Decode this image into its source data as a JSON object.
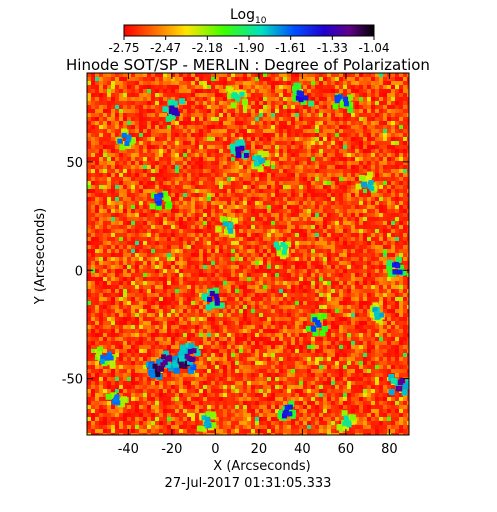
{
  "chart_data": {
    "type": "heatmap",
    "title": "Hinode SOT/SP - MERLIN : Degree of Polarization",
    "colorbar": {
      "label": "Log",
      "label_subscript": "10",
      "tick_labels": [
        "-2.75",
        "-2.47",
        "-2.18",
        "-1.90",
        "-1.61",
        "-1.33",
        "-1.04"
      ],
      "range": [
        -2.75,
        -1.04
      ],
      "colormap": "rainbow (red → yellow → green → cyan → blue → purple → black)"
    },
    "xlabel": "X (Arcseconds)",
    "ylabel": "Y (Arcseconds)",
    "xlim": [
      -59,
      89
    ],
    "ylim": [
      -76,
      91
    ],
    "xticks": [
      -40,
      -20,
      0,
      20,
      40,
      60,
      80
    ],
    "yticks": [
      -50,
      0,
      50
    ],
    "timestamp": "27-Jul-2017 01:31:05.333",
    "background_level": "red-orange noise (approx -2.6 to -2.4)",
    "features": [
      {
        "x": -27,
        "y": -46,
        "level": -1.2
      },
      {
        "x": -22,
        "y": -42,
        "level": -1.25
      },
      {
        "x": -14,
        "y": -43,
        "level": -1.2
      },
      {
        "x": -12,
        "y": -39,
        "level": -1.3
      },
      {
        "x": -19,
        "y": 74,
        "level": -1.4
      },
      {
        "x": 12,
        "y": 55,
        "level": -1.4
      },
      {
        "x": -25,
        "y": 33,
        "level": -1.6
      },
      {
        "x": 40,
        "y": 81,
        "level": -1.5
      },
      {
        "x": 83,
        "y": 1,
        "level": -1.5
      },
      {
        "x": 85,
        "y": -53,
        "level": -1.3
      },
      {
        "x": 33,
        "y": -65,
        "level": -1.5
      },
      {
        "x": -1,
        "y": -13,
        "level": -1.4
      },
      {
        "x": 47,
        "y": -25,
        "level": -1.6
      },
      {
        "x": 58,
        "y": 78,
        "level": -1.6
      },
      {
        "x": -42,
        "y": 60,
        "level": -1.7
      },
      {
        "x": 20,
        "y": 50,
        "level": -1.8
      },
      {
        "x": 5,
        "y": 20,
        "level": -1.8
      },
      {
        "x": -50,
        "y": -40,
        "level": -1.7
      },
      {
        "x": 70,
        "y": 40,
        "level": -1.8
      },
      {
        "x": 75,
        "y": -20,
        "level": -1.8
      },
      {
        "x": -45,
        "y": -60,
        "level": -1.7
      },
      {
        "x": 30,
        "y": 10,
        "level": -1.9
      },
      {
        "x": -5,
        "y": -70,
        "level": -1.8
      },
      {
        "x": 60,
        "y": -70,
        "level": -1.9
      },
      {
        "x": 10,
        "y": 80,
        "level": -1.9
      }
    ]
  }
}
